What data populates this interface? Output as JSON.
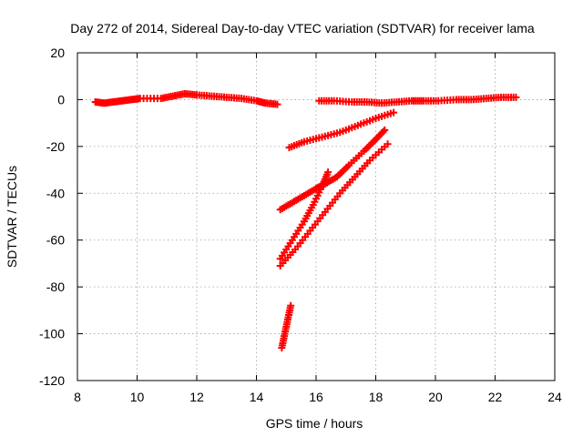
{
  "chart_data": {
    "type": "scatter",
    "title": "Day 272 of 2014, Sidereal Day-to-day VTEC variation (SDTVAR) for receiver lama",
    "xlabel": "GPS time / hours",
    "ylabel": "SDTVAR / TECUs",
    "xlim": [
      8,
      24
    ],
    "ylim": [
      -120,
      20
    ],
    "xticks": [
      8,
      10,
      12,
      14,
      16,
      18,
      20,
      22,
      24
    ],
    "yticks": [
      -120,
      -100,
      -80,
      -60,
      -40,
      -20,
      0,
      20
    ],
    "grid": true,
    "marker": "plus",
    "color": "#ff0000",
    "series": [
      {
        "points": [
          [
            8.6,
            -1
          ],
          [
            8.9,
            -1.5
          ],
          [
            9.2,
            -1
          ],
          [
            9.5,
            -0.5
          ],
          [
            9.8,
            0
          ],
          [
            10.1,
            0.5
          ],
          [
            10.8,
            0.5
          ],
          [
            11.2,
            1.5
          ],
          [
            11.6,
            2.5
          ],
          [
            12.0,
            2
          ],
          [
            12.5,
            1.5
          ],
          [
            13.0,
            1
          ],
          [
            13.5,
            0.5
          ],
          [
            14.0,
            -0.5
          ],
          [
            14.3,
            -1.5
          ],
          [
            14.7,
            -2
          ]
        ]
      },
      {
        "points": [
          [
            16.1,
            -0.5
          ],
          [
            16.6,
            -0.5
          ],
          [
            17.2,
            -1
          ],
          [
            17.7,
            -1
          ],
          [
            18.2,
            -1.5
          ],
          [
            18.7,
            -1
          ],
          [
            19.2,
            -0.5
          ],
          [
            19.6,
            -0.5
          ],
          [
            20.1,
            -0.5
          ],
          [
            20.7,
            0
          ],
          [
            21.2,
            0
          ],
          [
            21.7,
            0.5
          ],
          [
            22.2,
            1
          ],
          [
            22.7,
            1
          ]
        ]
      },
      {
        "points": [
          [
            15.1,
            -20.5
          ],
          [
            15.6,
            -18
          ],
          [
            16.2,
            -16
          ],
          [
            16.8,
            -14
          ],
          [
            17.4,
            -11
          ],
          [
            18.0,
            -8
          ],
          [
            18.6,
            -5.5
          ]
        ]
      },
      {
        "points": [
          [
            14.8,
            -47
          ],
          [
            15.2,
            -44
          ],
          [
            15.6,
            -41
          ],
          [
            16.0,
            -38
          ],
          [
            16.3,
            -36
          ],
          [
            16.7,
            -33
          ],
          [
            17.1,
            -28
          ],
          [
            17.6,
            -22
          ],
          [
            18.0,
            -17
          ],
          [
            18.3,
            -13
          ]
        ]
      },
      {
        "points": [
          [
            14.8,
            -71
          ],
          [
            15.3,
            -64
          ],
          [
            15.8,
            -56
          ],
          [
            16.3,
            -48
          ],
          [
            16.8,
            -40
          ],
          [
            17.3,
            -33
          ],
          [
            17.8,
            -26
          ],
          [
            18.4,
            -19
          ]
        ]
      },
      {
        "points": [
          [
            14.8,
            -68
          ],
          [
            15.2,
            -60
          ],
          [
            15.6,
            -52
          ],
          [
            15.9,
            -45
          ],
          [
            16.2,
            -37
          ],
          [
            16.4,
            -31
          ]
        ]
      },
      {
        "points": [
          [
            14.85,
            -106
          ],
          [
            14.95,
            -100
          ],
          [
            15.05,
            -94
          ],
          [
            15.15,
            -88
          ]
        ]
      }
    ]
  }
}
